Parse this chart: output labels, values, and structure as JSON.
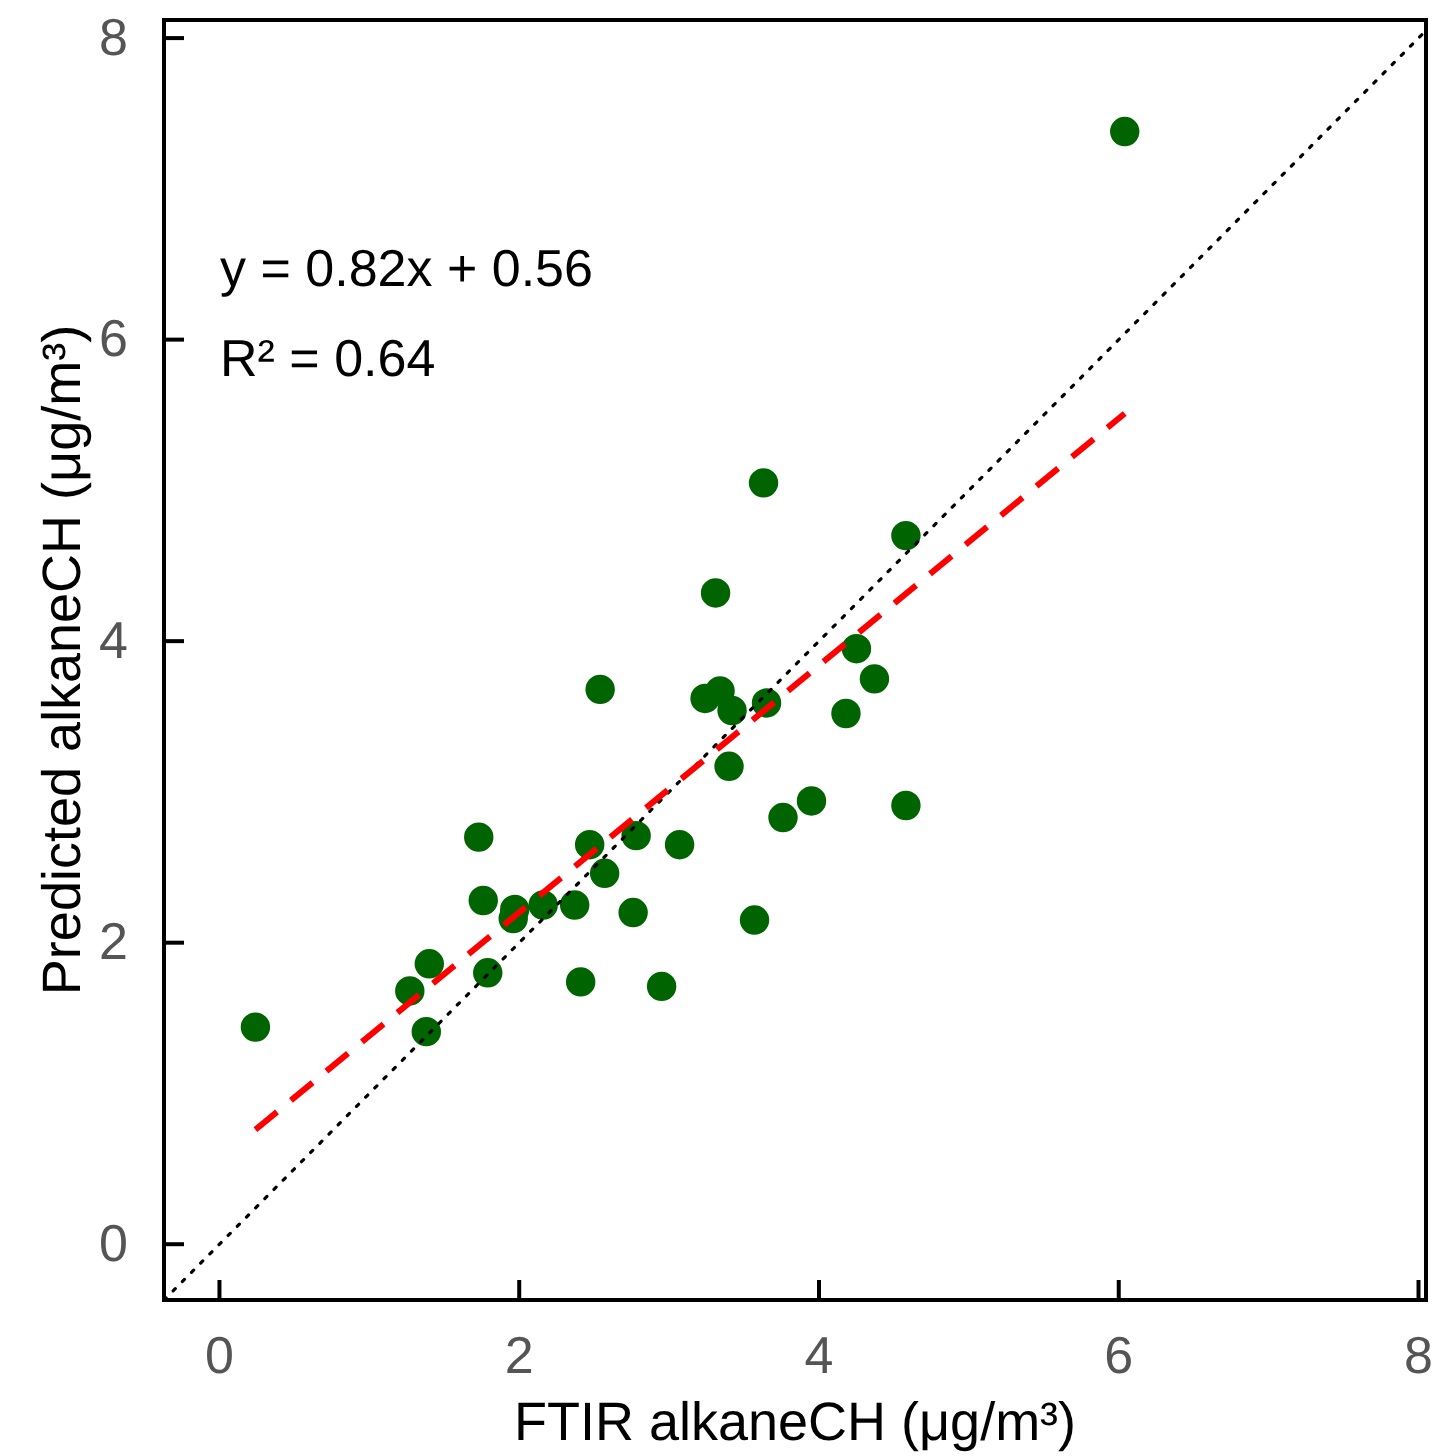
{
  "chart_data": {
    "type": "scatter",
    "xlabel": "FTIR alkaneCH (μg/m³)",
    "ylabel": "Predicted alkaneCH (μg/m³)",
    "xlim": [
      -0.37,
      8.05
    ],
    "ylim": [
      -0.37,
      8.12
    ],
    "xticks": [
      0,
      2,
      4,
      6,
      8
    ],
    "yticks": [
      0,
      2,
      4,
      6,
      8
    ],
    "grid": false,
    "marker": "circle",
    "annotations": [
      "y = 0.82x + 0.56",
      "R² = 0.64"
    ],
    "series": [
      {
        "color": "#006400",
        "x": [
          0.24,
          3.63,
          4.58,
          3.31,
          2.54,
          4.25,
          4.37,
          3.24,
          3.34,
          3.42,
          3.65,
          4.18,
          3.4,
          3.95,
          3.76,
          4.58,
          1.73,
          2.47,
          2.78,
          3.07,
          2.57,
          1.76,
          1.97,
          1.96,
          2.16,
          2.37,
          2.76,
          3.57,
          1.4,
          1.79,
          1.27,
          2.41,
          2.95,
          1.38,
          6.04
        ],
        "values": [
          1.44,
          5.05,
          4.7,
          4.32,
          3.68,
          3.95,
          3.75,
          3.62,
          3.67,
          3.54,
          3.59,
          3.52,
          3.17,
          2.94,
          2.83,
          2.91,
          2.7,
          2.65,
          2.71,
          2.65,
          2.46,
          2.28,
          2.22,
          2.16,
          2.25,
          2.25,
          2.2,
          2.15,
          1.86,
          1.8,
          1.68,
          1.74,
          1.71,
          1.41,
          7.38
        ]
      },
      {
        "type": "line",
        "color": "#000000",
        "line_style": "dotted",
        "marker": "none",
        "x": [
          -0.37,
          8.05
        ],
        "values": [
          -0.37,
          8.05
        ]
      },
      {
        "type": "line",
        "color": "#ff0000",
        "line_style": "dashed",
        "marker": "none",
        "x": [
          0.24,
          6.04
        ],
        "values": [
          0.76,
          5.51
        ]
      }
    ]
  }
}
